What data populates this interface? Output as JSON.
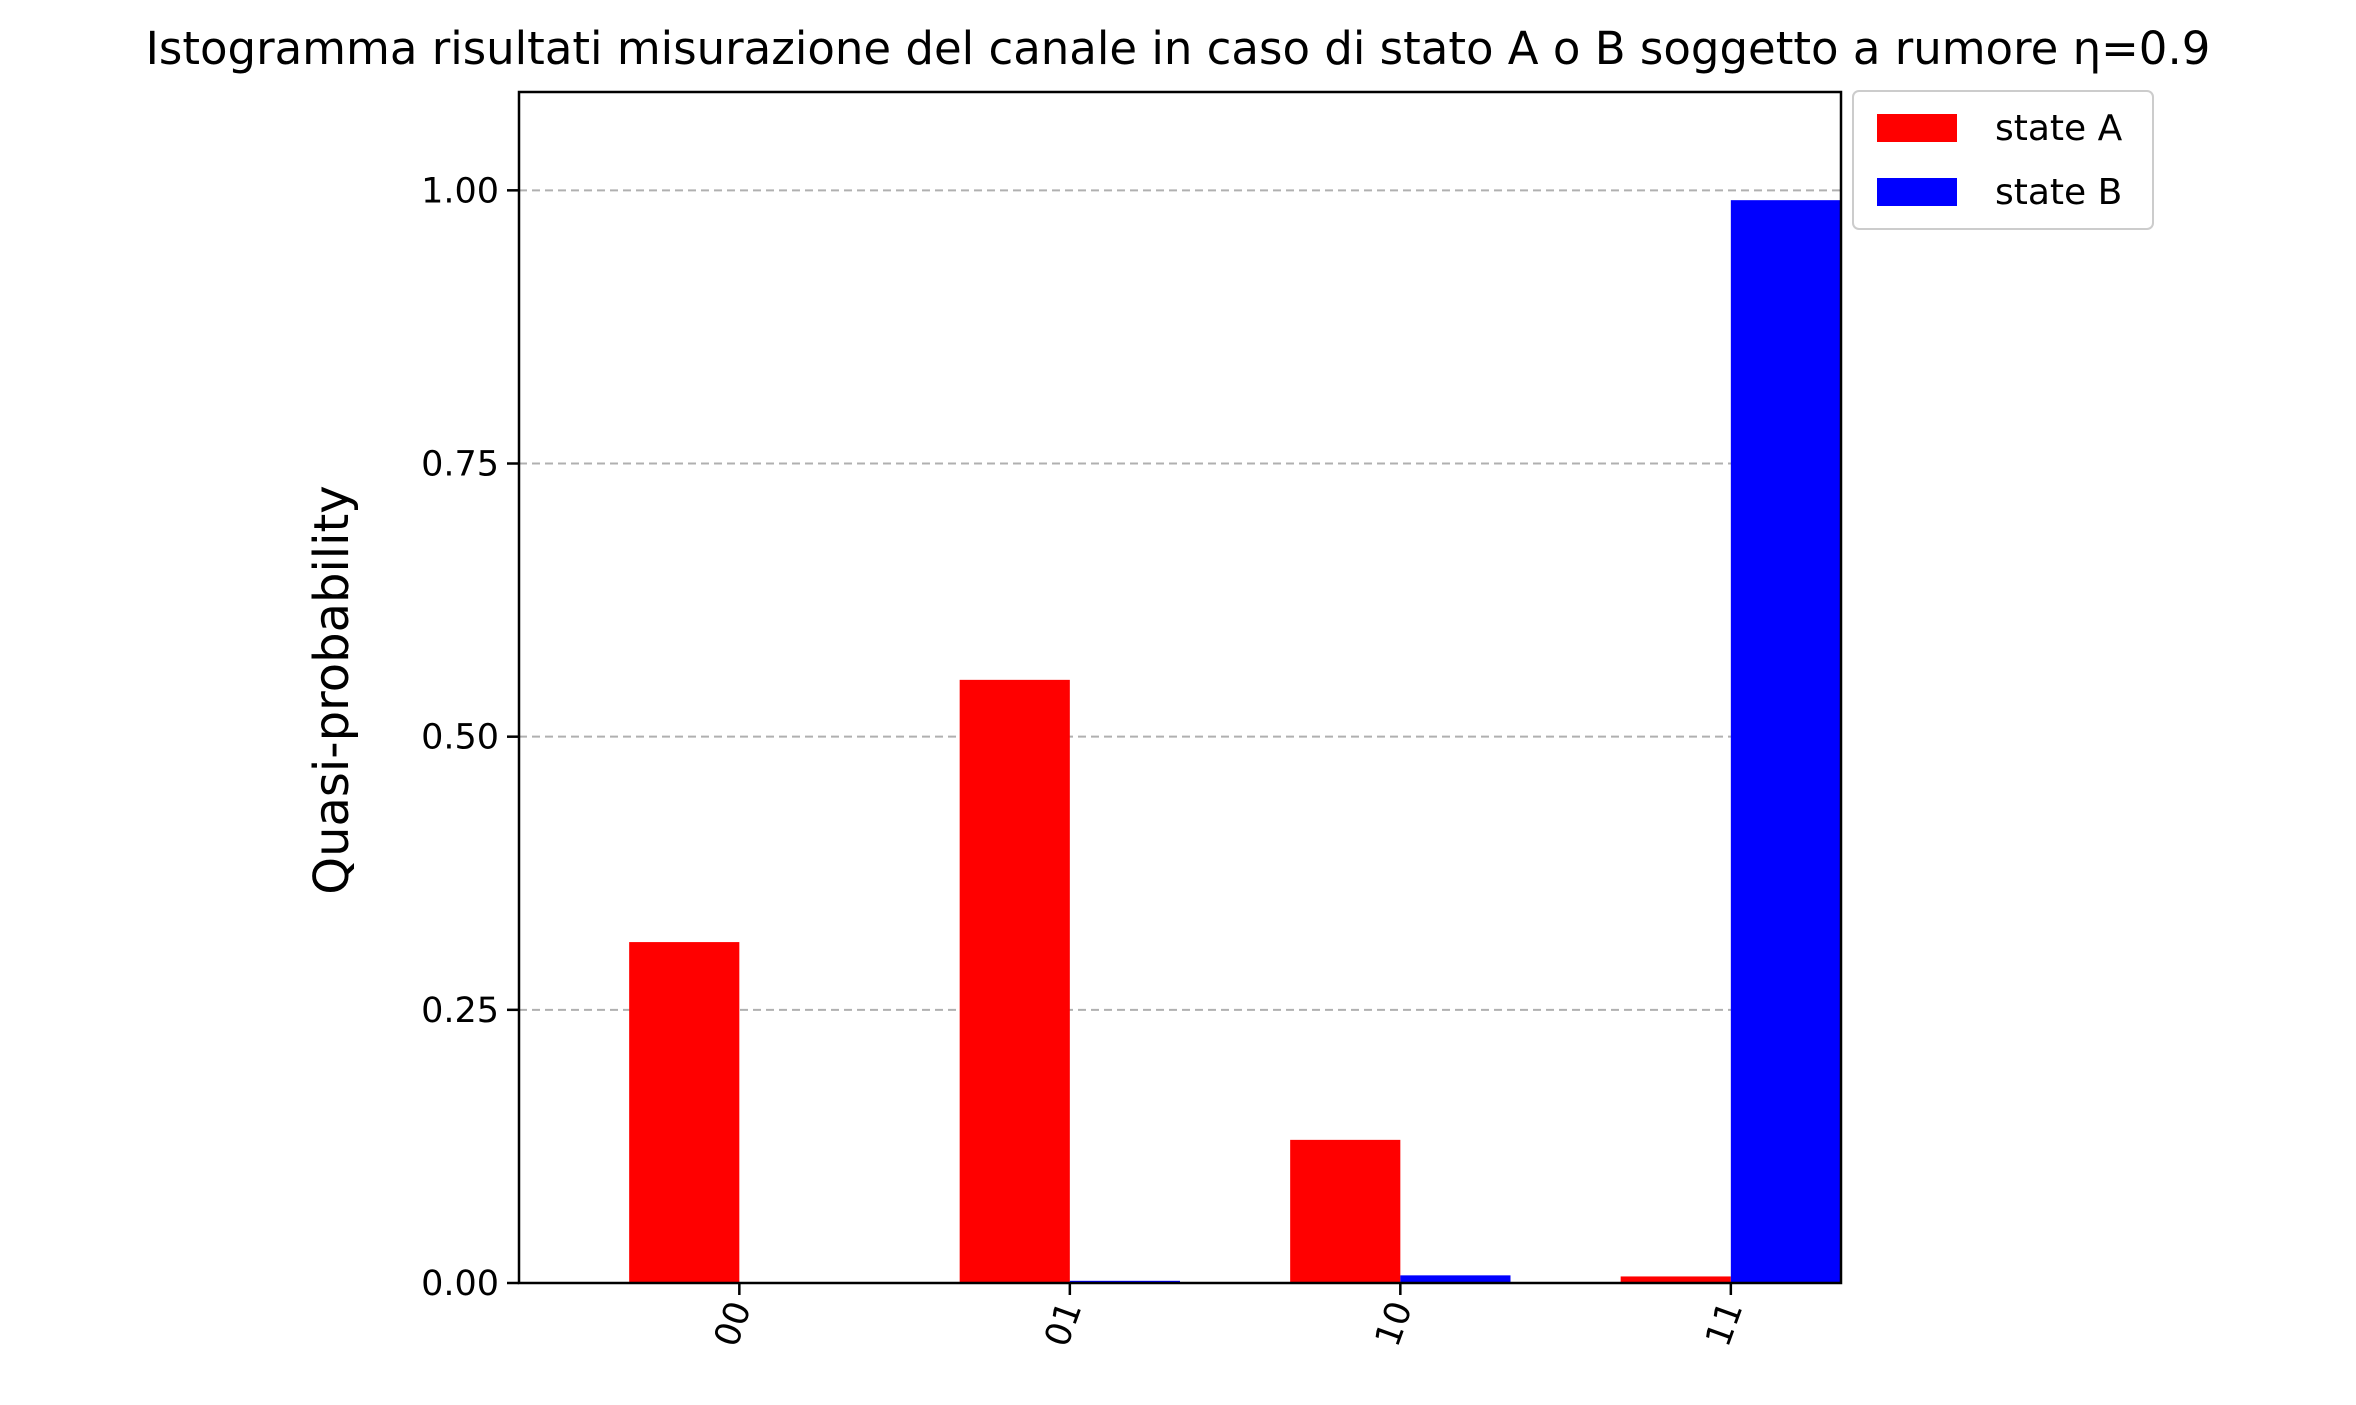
{
  "chart_data": {
    "type": "bar",
    "title": "Istogramma risultati misurazione del canale in caso di stato A o B soggetto a rumore η=0.9",
    "xlabel": "",
    "ylabel": "Quasi-probability",
    "categories": [
      "00",
      "01",
      "10",
      "11"
    ],
    "series": [
      {
        "name": "state A",
        "color": "#ff0000",
        "values": [
          0.312,
          0.552,
          0.131,
          0.006
        ]
      },
      {
        "name": "state B",
        "color": "#0000ff",
        "values": [
          0.0,
          0.002,
          0.007,
          0.991
        ]
      }
    ],
    "ylim": [
      0,
      1.09
    ],
    "yticks": [
      0.0,
      0.25,
      0.5,
      0.75,
      1.0
    ],
    "ytick_labels": [
      "0.00",
      "0.25",
      "0.50",
      "0.75",
      "1.00"
    ],
    "grid": "y-dashed",
    "legend_position": "outside-top-right",
    "xtick_rotation": "rotated"
  }
}
